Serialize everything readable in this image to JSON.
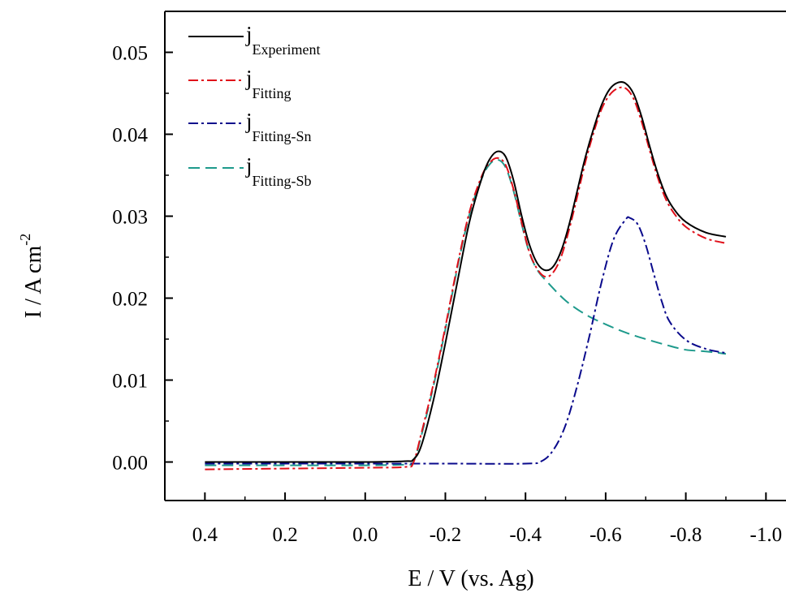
{
  "chart_data": {
    "type": "line",
    "xlabel": "E / V (vs. Ag)",
    "ylabel_main": "I / A cm",
    "ylabel_exponent": "-2",
    "xlim": [
      0.5,
      -1.05
    ],
    "ylim": [
      -0.0047,
      0.055
    ],
    "x_ticks": [
      0.4,
      0.2,
      0.0,
      -0.2,
      -0.4,
      -0.6,
      -0.8,
      -1.0
    ],
    "x_tick_labels": [
      "0.4",
      "0.2",
      "0.0",
      "-0.2",
      "-0.4",
      "-0.6",
      "-0.8",
      "-1.0"
    ],
    "y_ticks": [
      0.0,
      0.01,
      0.02,
      0.03,
      0.04,
      0.05
    ],
    "y_tick_labels": [
      "0.00",
      "0.01",
      "0.02",
      "0.03",
      "0.04",
      "0.05"
    ],
    "grid": false,
    "legend_position": "top-left",
    "series": [
      {
        "name": "j",
        "subscript": "Experiment",
        "color": "#000000",
        "dash": "",
        "x": [
          0.4,
          0.2,
          0.0,
          -0.1,
          -0.12,
          -0.14,
          -0.17,
          -0.2,
          -0.23,
          -0.26,
          -0.29,
          -0.31,
          -0.33,
          -0.35,
          -0.37,
          -0.39,
          -0.41,
          -0.43,
          -0.45,
          -0.47,
          -0.49,
          -0.51,
          -0.53,
          -0.55,
          -0.57,
          -0.59,
          -0.61,
          -0.63,
          -0.65,
          -0.67,
          -0.69,
          -0.71,
          -0.73,
          -0.75,
          -0.77,
          -0.8,
          -0.85,
          -0.9
        ],
        "y": [
          0.0,
          0.0,
          0.0,
          0.0001,
          0.0003,
          0.002,
          0.0075,
          0.0145,
          0.022,
          0.0293,
          0.0345,
          0.0369,
          0.0379,
          0.0373,
          0.0344,
          0.0301,
          0.0265,
          0.0242,
          0.0234,
          0.0239,
          0.0259,
          0.0292,
          0.0333,
          0.0373,
          0.0407,
          0.0436,
          0.0455,
          0.0463,
          0.0462,
          0.0449,
          0.0421,
          0.0385,
          0.0352,
          0.0326,
          0.0309,
          0.0293,
          0.028,
          0.0275
        ]
      },
      {
        "name": "j",
        "subscript": "Fitting",
        "color": "#e0101a",
        "dash": "12 4 3 4",
        "x": [
          0.4,
          0.2,
          0.0,
          -0.1,
          -0.12,
          -0.14,
          -0.17,
          -0.2,
          -0.23,
          -0.26,
          -0.29,
          -0.31,
          -0.33,
          -0.35,
          -0.37,
          -0.39,
          -0.41,
          -0.43,
          -0.45,
          -0.47,
          -0.49,
          -0.51,
          -0.53,
          -0.55,
          -0.57,
          -0.59,
          -0.61,
          -0.63,
          -0.65,
          -0.67,
          -0.69,
          -0.71,
          -0.73,
          -0.75,
          -0.77,
          -0.8,
          -0.85,
          -0.9
        ],
        "y": [
          -0.0009,
          -0.0008,
          -0.0007,
          -0.0006,
          -0.0001,
          0.0035,
          0.0095,
          0.0165,
          0.024,
          0.0305,
          0.0348,
          0.0365,
          0.0371,
          0.0363,
          0.0333,
          0.0293,
          0.0256,
          0.0235,
          0.0226,
          0.0232,
          0.0252,
          0.0286,
          0.0326,
          0.0367,
          0.0402,
          0.0431,
          0.0448,
          0.0456,
          0.0456,
          0.0443,
          0.0415,
          0.038,
          0.0347,
          0.0321,
          0.0304,
          0.0287,
          0.0273,
          0.0267
        ]
      },
      {
        "name": "j",
        "subscript": "Fitting-Sn",
        "color": "#0a0a8c",
        "dash": "12 4 3 4",
        "x": [
          0.4,
          0.2,
          0.0,
          -0.2,
          -0.4,
          -0.44,
          -0.47,
          -0.5,
          -0.53,
          -0.56,
          -0.59,
          -0.62,
          -0.65,
          -0.66,
          -0.68,
          -0.7,
          -0.72,
          -0.74,
          -0.76,
          -0.8,
          -0.85,
          -0.9
        ],
        "y": [
          -0.0002,
          -0.0002,
          -0.0002,
          -0.0002,
          -0.0002,
          0.0001,
          0.0015,
          0.0045,
          0.0095,
          0.0155,
          0.022,
          0.0272,
          0.0296,
          0.0298,
          0.029,
          0.0265,
          0.023,
          0.0196,
          0.0171,
          0.0149,
          0.0138,
          0.0133
        ]
      },
      {
        "name": "j",
        "subscript": "Fitting-Sb",
        "color": "#1e9a8c",
        "dash": "14 7",
        "x": [
          0.4,
          0.2,
          0.0,
          -0.1,
          -0.12,
          -0.14,
          -0.17,
          -0.2,
          -0.23,
          -0.26,
          -0.29,
          -0.31,
          -0.33,
          -0.35,
          -0.37,
          -0.39,
          -0.41,
          -0.43,
          -0.45,
          -0.5,
          -0.55,
          -0.6,
          -0.65,
          -0.7,
          -0.75,
          -0.8,
          -0.85,
          -0.9
        ],
        "y": [
          -0.0004,
          -0.0004,
          -0.0004,
          -0.0003,
          0.0,
          0.0032,
          0.0092,
          0.0162,
          0.0237,
          0.0302,
          0.0345,
          0.0363,
          0.0369,
          0.036,
          0.0331,
          0.0291,
          0.0255,
          0.0234,
          0.0222,
          0.0197,
          0.018,
          0.0168,
          0.0158,
          0.015,
          0.0143,
          0.0137,
          0.0135,
          0.0132
        ]
      }
    ]
  }
}
